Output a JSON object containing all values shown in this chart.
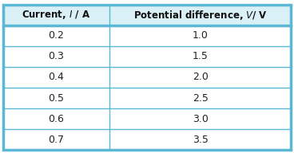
{
  "col1_header": "Current, $\\it{I}$ / A",
  "col2_header": "Potential difference, $\\it{V}$/ V",
  "rows": [
    [
      "0.2",
      "1.0"
    ],
    [
      "0.3",
      "1.5"
    ],
    [
      "0.4",
      "2.0"
    ],
    [
      "0.5",
      "2.5"
    ],
    [
      "0.6",
      "3.0"
    ],
    [
      "0.7",
      "3.5"
    ]
  ],
  "border_color": "#5bb8d4",
  "header_bg": "#daf0f7",
  "row_bg": "#ffffff",
  "text_color": "#222222",
  "header_text_color": "#111111",
  "fig_bg": "#ffffff",
  "outer_border_lw": 2.5,
  "inner_line_lw": 1.0,
  "col_split": 0.37
}
